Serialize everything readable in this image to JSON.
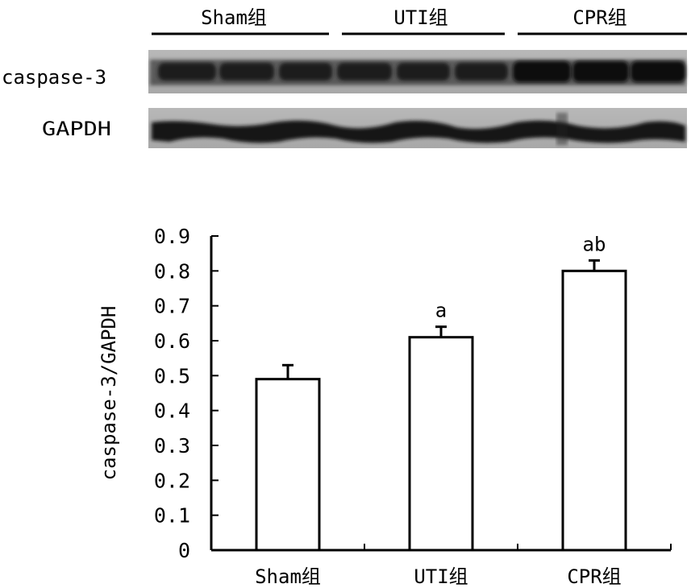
{
  "blot": {
    "group_labels": [
      "Sham组",
      "UTI组",
      "CPR组"
    ],
    "rows": [
      {
        "label": "caspase-3"
      },
      {
        "label": "GAPDH"
      }
    ]
  },
  "chart_data": {
    "type": "bar",
    "categories": [
      "Sham组",
      "UTI组",
      "CPR组"
    ],
    "values": [
      0.49,
      0.61,
      0.8
    ],
    "error": [
      0.04,
      0.03,
      0.03
    ],
    "annotations": [
      "",
      "a",
      "ab"
    ],
    "title": "",
    "xlabel": "",
    "ylabel": "caspase-3/GAPDH",
    "ylim": [
      0,
      0.9
    ],
    "yticks": [
      0,
      0.1,
      0.2,
      0.3,
      0.4,
      0.5,
      0.6,
      0.7,
      0.8,
      0.9
    ],
    "ytick_labels": [
      "0",
      "0.1",
      "0.2",
      "0.3",
      "0.4",
      "0.5",
      "0.6",
      "0.7",
      "0.8",
      "0.9"
    ],
    "grid": false,
    "colors": {
      "bar_fill": "#ffffff",
      "bar_stroke": "#000000"
    }
  }
}
